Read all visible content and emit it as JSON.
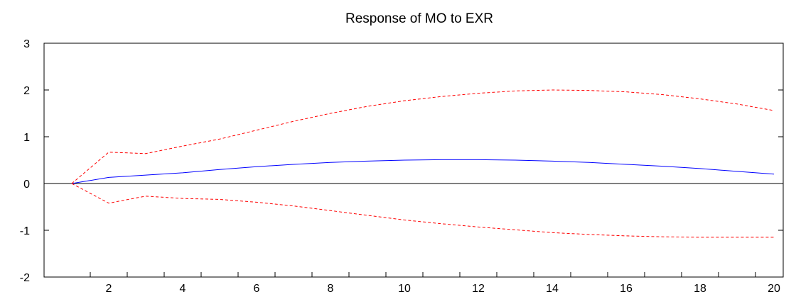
{
  "chart_data": {
    "type": "line",
    "title": "Response of MO to EXR",
    "xlabel": "",
    "ylabel": "",
    "x": [
      1,
      2,
      3,
      4,
      5,
      6,
      7,
      8,
      9,
      10,
      11,
      12,
      13,
      14,
      15,
      16,
      17,
      18,
      19,
      20
    ],
    "xlim": [
      0.25,
      20.25
    ],
    "ylim": [
      -2,
      3
    ],
    "x_tick_labels": [
      "2",
      "4",
      "6",
      "8",
      "10",
      "12",
      "14",
      "16",
      "18",
      "20"
    ],
    "y_tick_labels": [
      "-2",
      "-1",
      "0",
      "1",
      "2",
      "3"
    ],
    "grid": false,
    "zero_line": true,
    "legend": "none",
    "series": [
      {
        "role": "response",
        "style": "solid",
        "color": "#0000ff",
        "values": [
          0.0,
          0.13,
          0.18,
          0.23,
          0.3,
          0.36,
          0.41,
          0.45,
          0.48,
          0.5,
          0.51,
          0.51,
          0.5,
          0.48,
          0.45,
          0.41,
          0.37,
          0.32,
          0.26,
          0.2
        ]
      },
      {
        "role": "upper-band",
        "style": "dashed",
        "color": "#ff0000",
        "values": [
          0.0,
          0.67,
          0.64,
          0.8,
          0.95,
          1.14,
          1.33,
          1.5,
          1.65,
          1.77,
          1.86,
          1.93,
          1.98,
          2.0,
          1.99,
          1.96,
          1.9,
          1.81,
          1.7,
          1.56
        ]
      },
      {
        "role": "lower-band",
        "style": "dashed",
        "color": "#ff0000",
        "values": [
          0.0,
          -0.42,
          -0.27,
          -0.32,
          -0.34,
          -0.4,
          -0.48,
          -0.58,
          -0.68,
          -0.78,
          -0.86,
          -0.93,
          -0.99,
          -1.05,
          -1.09,
          -1.12,
          -1.14,
          -1.15,
          -1.15,
          -1.15
        ]
      }
    ]
  }
}
